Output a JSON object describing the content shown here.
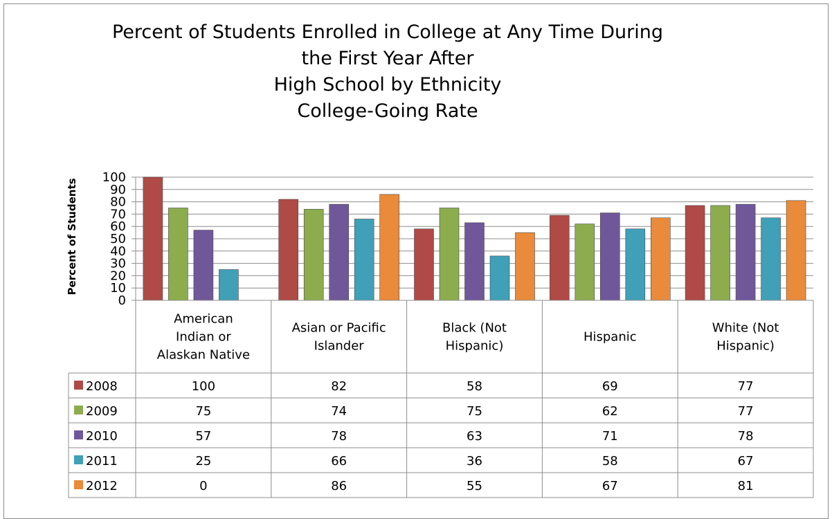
{
  "chart_data": {
    "type": "bar",
    "title": [
      "Percent of Students Enrolled in College at Any Time During",
      "the First Year After",
      "High School by Ethnicity",
      "College-Going Rate"
    ],
    "ylabel": "Percent of Students",
    "ylim": [
      0,
      100
    ],
    "yticks": [
      0,
      10,
      20,
      30,
      40,
      50,
      60,
      70,
      80,
      90,
      100
    ],
    "grid": true,
    "legend": "data-table",
    "categories": [
      [
        "American",
        "Indian or",
        "Alaskan Native"
      ],
      [
        "Asian or Pacific",
        "Islander"
      ],
      [
        "Black (Not",
        "Hispanic)"
      ],
      [
        "Hispanic"
      ],
      [
        "White (Not",
        "Hispanic)"
      ]
    ],
    "series": [
      {
        "name": "2008",
        "color": "#b04a46",
        "values": [
          100,
          82,
          58,
          69,
          77
        ]
      },
      {
        "name": "2009",
        "color": "#8cac4e",
        "values": [
          75,
          74,
          75,
          62,
          77
        ]
      },
      {
        "name": "2010",
        "color": "#70579a",
        "values": [
          57,
          78,
          63,
          71,
          78
        ]
      },
      {
        "name": "2011",
        "color": "#3fa0b8",
        "values": [
          25,
          66,
          36,
          58,
          67
        ]
      },
      {
        "name": "2012",
        "color": "#e98b3a",
        "values": [
          0,
          86,
          55,
          67,
          81
        ]
      }
    ]
  }
}
